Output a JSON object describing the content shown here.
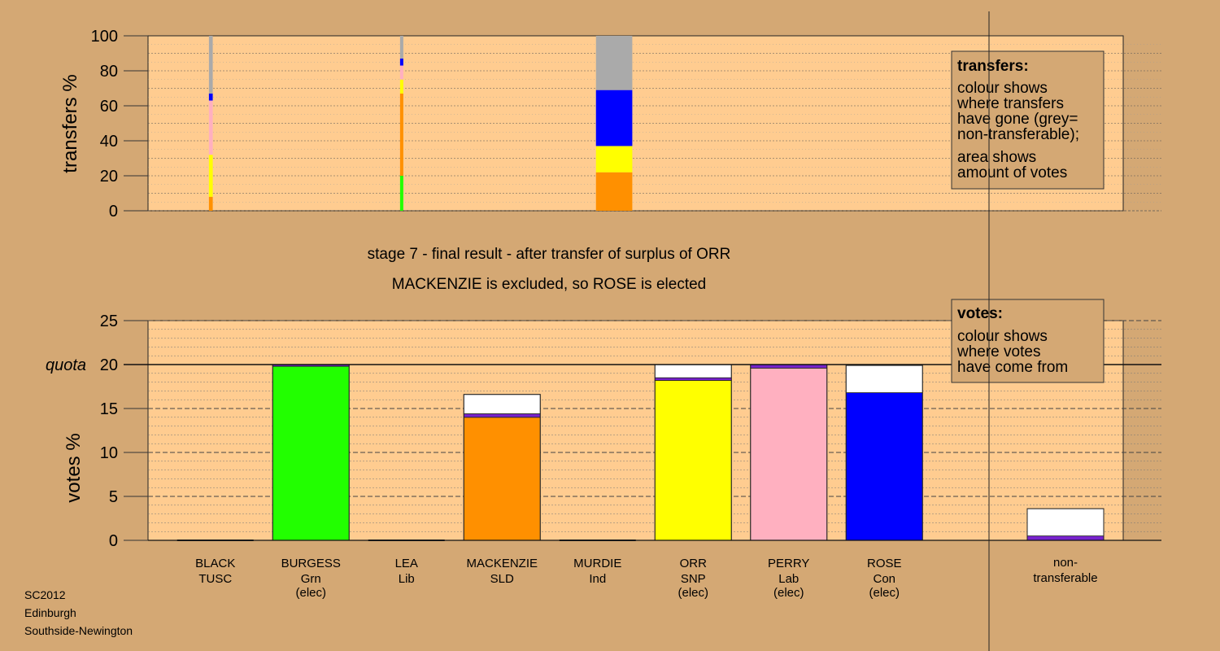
{
  "chart_data": {
    "type": "bar",
    "titles": {
      "line1": "stage 7 - final result - after transfer of surplus of ORR",
      "line2": "MACKENZIE is excluded, so ROSE is elected"
    },
    "candidates": [
      {
        "name": "BLACK",
        "party": "TUSC",
        "status": ""
      },
      {
        "name": "BURGESS",
        "party": "Grn",
        "status": "(elec)"
      },
      {
        "name": "LEA",
        "party": "Lib",
        "status": ""
      },
      {
        "name": "MACKENZIE",
        "party": "SLD",
        "status": ""
      },
      {
        "name": "MURDIE",
        "party": "Ind",
        "status": ""
      },
      {
        "name": "ORR",
        "party": "SNP",
        "status": "(elec)"
      },
      {
        "name": "PERRY",
        "party": "Lab",
        "status": "(elec)"
      },
      {
        "name": "ROSE",
        "party": "Con",
        "status": "(elec)"
      }
    ],
    "nontransferable_label": [
      "non-",
      "transferable"
    ],
    "party_colors": {
      "TUSC": "#ff0000",
      "Grn": "#22ff00",
      "Lib": "#f0a000",
      "SLD": "#ff9000",
      "Ind": "#ffc0cb",
      "SNP": "#ffff00",
      "Lab": "#ffb0c0",
      "Con": "#0000ff",
      "other": "#7722cc",
      "transfer": "#ffffff",
      "grey": "#aaaaaa"
    },
    "transfers_chart": {
      "ylabel": "transfers %",
      "ylim": [
        0,
        100
      ],
      "yticks": [
        0,
        20,
        40,
        60,
        80,
        100
      ],
      "columns": [
        {
          "x_index": 0.45,
          "width": 0.04,
          "segments": [
            {
              "party": "SLD",
              "value": 8
            },
            {
              "party": "SNP",
              "value": 24
            },
            {
              "party": "Lab",
              "value": 31
            },
            {
              "party": "Con",
              "value": 4
            },
            {
              "party": "grey",
              "value": 33
            }
          ]
        },
        {
          "x_index": 2.45,
          "width": 0.03,
          "segments": [
            {
              "party": "Grn",
              "value": 20
            },
            {
              "party": "SLD",
              "value": 47
            },
            {
              "party": "SNP",
              "value": 8
            },
            {
              "party": "Lab",
              "value": 8
            },
            {
              "party": "Con",
              "value": 4
            },
            {
              "party": "grey",
              "value": 13
            }
          ]
        },
        {
          "x_index": 4.5,
          "width": 0.38,
          "segments": [
            {
              "party": "SLD",
              "value": 22
            },
            {
              "party": "SNP",
              "value": 15
            },
            {
              "party": "Con",
              "value": 32
            },
            {
              "party": "grey",
              "value": 31
            }
          ]
        }
      ]
    },
    "votes_chart": {
      "ylabel": "votes %",
      "ylim": [
        0,
        25
      ],
      "yticks": [
        0,
        5,
        10,
        15,
        20,
        25
      ],
      "quota_label": "quota",
      "quota": 20,
      "bars": [
        {
          "candidate": "BLACK",
          "segments": []
        },
        {
          "candidate": "BURGESS",
          "segments": [
            {
              "party": "Grn",
              "value": 19.8
            },
            {
              "party": "other",
              "value": 0.2
            }
          ]
        },
        {
          "candidate": "LEA",
          "segments": []
        },
        {
          "candidate": "MACKENZIE",
          "segments": [
            {
              "party": "SLD",
              "value": 14.0
            },
            {
              "party": "other",
              "value": 0.4
            },
            {
              "party": "transfer",
              "value": 2.2
            }
          ]
        },
        {
          "candidate": "MURDIE",
          "segments": []
        },
        {
          "candidate": "ORR",
          "segments": [
            {
              "party": "SNP",
              "value": 18.2
            },
            {
              "party": "other",
              "value": 0.3
            },
            {
              "party": "transfer",
              "value": 1.5
            }
          ]
        },
        {
          "candidate": "PERRY",
          "segments": [
            {
              "party": "Lab",
              "value": 19.6
            },
            {
              "party": "other",
              "value": 0.4
            }
          ]
        },
        {
          "candidate": "ROSE",
          "segments": [
            {
              "party": "Con",
              "value": 16.8
            },
            {
              "party": "transfer",
              "value": 3.1
            }
          ]
        },
        {
          "candidate": "non-transferable",
          "segments": [
            {
              "party": "other",
              "value": 0.5
            },
            {
              "party": "transfer",
              "value": 3.1
            }
          ]
        }
      ]
    },
    "legend_transfers": {
      "title": "transfers:",
      "lines1": [
        "colour shows",
        "where transfers",
        "have gone (grey=",
        "non-transferable);"
      ],
      "lines2": [
        "area shows",
        "amount of votes"
      ]
    },
    "legend_votes": {
      "title": "votes:",
      "lines": [
        "colour shows",
        "where votes",
        "have come from"
      ]
    }
  },
  "footer": {
    "line1": "SC2012",
    "line2": "Edinburgh",
    "line3": "Southside-Newington"
  }
}
